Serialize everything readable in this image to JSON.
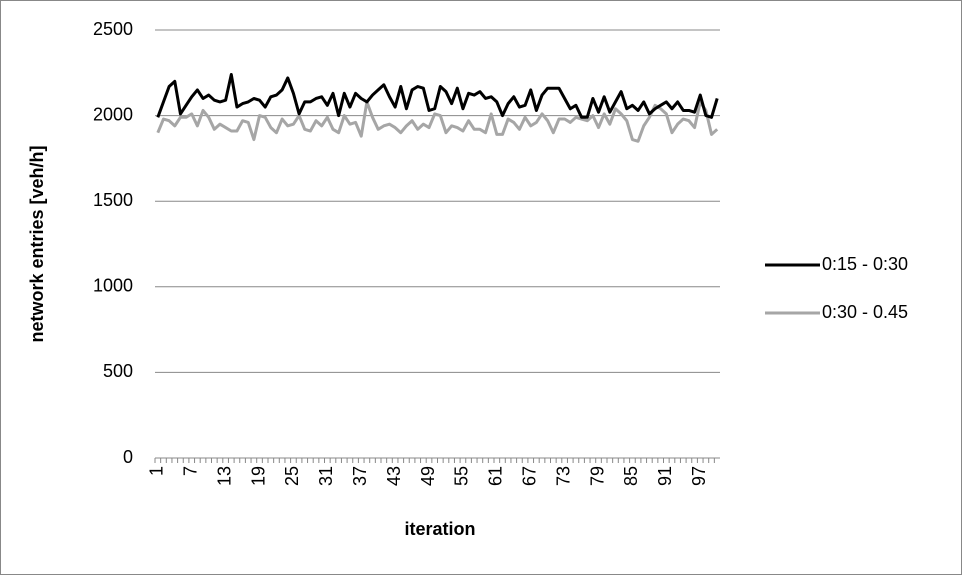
{
  "chart_data": {
    "type": "line",
    "y_label": "network entries [veh/h]",
    "x_label": "iteration",
    "categories": [
      "1",
      null,
      null,
      null,
      null,
      null,
      "7",
      null,
      null,
      null,
      null,
      null,
      "13",
      null,
      null,
      null,
      null,
      null,
      "19",
      null,
      null,
      null,
      null,
      null,
      "25",
      null,
      null,
      null,
      null,
      null,
      "31",
      null,
      null,
      null,
      null,
      null,
      "37",
      null,
      null,
      null,
      null,
      null,
      "43",
      null,
      null,
      null,
      null,
      null,
      "49",
      null,
      null,
      null,
      null,
      null,
      "55",
      null,
      null,
      null,
      null,
      null,
      "61",
      null,
      null,
      null,
      null,
      null,
      "67",
      null,
      null,
      null,
      null,
      null,
      "73",
      null,
      null,
      null,
      null,
      null,
      "79",
      null,
      null,
      null,
      null,
      null,
      "85",
      null,
      null,
      null,
      null,
      null,
      "91",
      null,
      null,
      null,
      null,
      null,
      "97",
      null,
      null,
      null
    ],
    "series": [
      {
        "name": "0:15 - 0:30",
        "color": "#000000",
        "values": [
          1990,
          2080,
          2170,
          2200,
          2010,
          2060,
          2110,
          2150,
          2100,
          2120,
          2090,
          2080,
          2090,
          2240,
          2050,
          2070,
          2080,
          2100,
          2090,
          2050,
          2110,
          2120,
          2150,
          2220,
          2130,
          2010,
          2080,
          2080,
          2100,
          2110,
          2060,
          2130,
          2000,
          2130,
          2050,
          2130,
          2100,
          2080,
          2120,
          2150,
          2180,
          2110,
          2050,
          2170,
          2040,
          2150,
          2170,
          2160,
          2030,
          2040,
          2170,
          2140,
          2070,
          2160,
          2040,
          2130,
          2120,
          2140,
          2100,
          2110,
          2080,
          2000,
          2070,
          2110,
          2050,
          2060,
          2150,
          2030,
          2120,
          2160,
          2160,
          2160,
          2100,
          2040,
          2060,
          1990,
          1990,
          2100,
          2020,
          2110,
          2020,
          2080,
          2140,
          2040,
          2060,
          2030,
          2080,
          2010,
          2040,
          2060,
          2080,
          2040,
          2080,
          2030,
          2030,
          2020,
          2120,
          2000,
          1990,
          2100
        ]
      },
      {
        "name": "0:30 - 0.45",
        "color": "#a6a6a6",
        "values": [
          1900,
          1980,
          1970,
          1940,
          1990,
          1990,
          2010,
          1940,
          2030,
          1990,
          1920,
          1950,
          1930,
          1910,
          1910,
          1970,
          1960,
          1860,
          2000,
          1990,
          1930,
          1900,
          1980,
          1940,
          1950,
          2000,
          1920,
          1910,
          1970,
          1940,
          1990,
          1920,
          1900,
          2000,
          1950,
          1960,
          1880,
          2080,
          1990,
          1920,
          1940,
          1950,
          1930,
          1900,
          1940,
          1970,
          1920,
          1950,
          1930,
          2010,
          2000,
          1900,
          1940,
          1930,
          1910,
          1970,
          1920,
          1920,
          1900,
          2010,
          1890,
          1890,
          1980,
          1960,
          1920,
          1990,
          1940,
          1960,
          2010,
          1970,
          1900,
          1980,
          1980,
          1960,
          1990,
          1980,
          1970,
          2000,
          1930,
          2010,
          1950,
          2040,
          2010,
          1970,
          1860,
          1850,
          1940,
          1990,
          2060,
          2040,
          2010,
          1900,
          1950,
          1980,
          1970,
          1930,
          2080,
          2030,
          1890,
          1920
        ]
      }
    ],
    "ylim": [
      0,
      2500
    ],
    "yticks": [
      0,
      500,
      1000,
      1500,
      2000,
      2500
    ],
    "grid": true,
    "legend": "right"
  }
}
